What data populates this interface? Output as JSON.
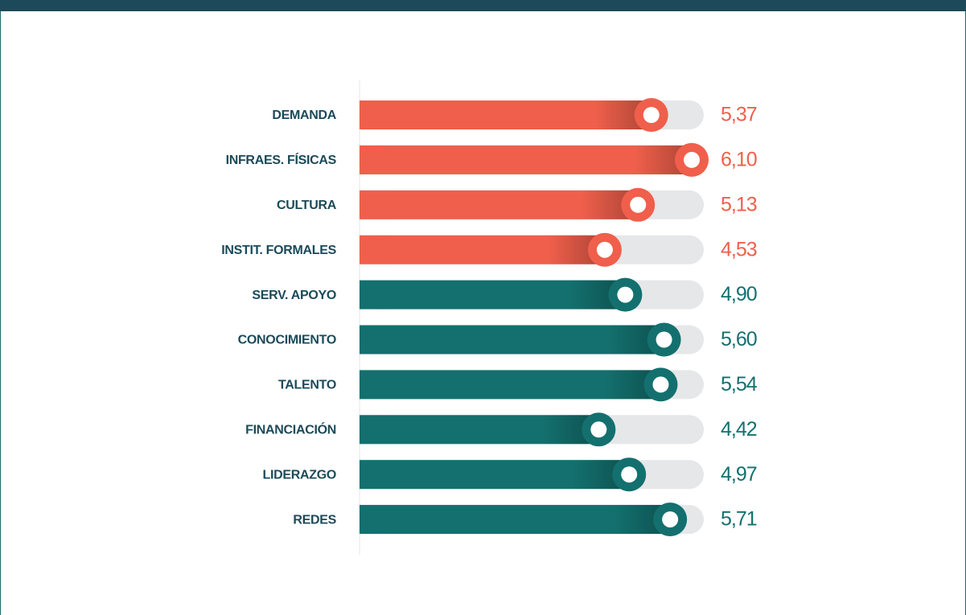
{
  "chart_data": {
    "type": "bar",
    "orientation": "horizontal",
    "categories": [
      "DEMANDA",
      "INFRAES. FÍSICAS",
      "CULTURA",
      "INSTIT. FORMALES",
      "SERV. APOYO",
      "CONOCIMIENTO",
      "TALENTO",
      "FINANCIACIÓN",
      "LIDERAZGO",
      "REDES"
    ],
    "values": [
      5.37,
      6.1,
      5.13,
      4.53,
      4.9,
      5.6,
      5.54,
      4.42,
      4.97,
      5.71
    ],
    "value_labels": [
      "5,37",
      "6,10",
      "5,13",
      "4,53",
      "4,90",
      "5,60",
      "5,54",
      "4,42",
      "4,97",
      "5,71"
    ],
    "colors": [
      "#ef5f4b",
      "#ef5f4b",
      "#ef5f4b",
      "#ef5f4b",
      "#13706e",
      "#13706e",
      "#13706e",
      "#13706e",
      "#13706e",
      "#13706e"
    ]
  }
}
